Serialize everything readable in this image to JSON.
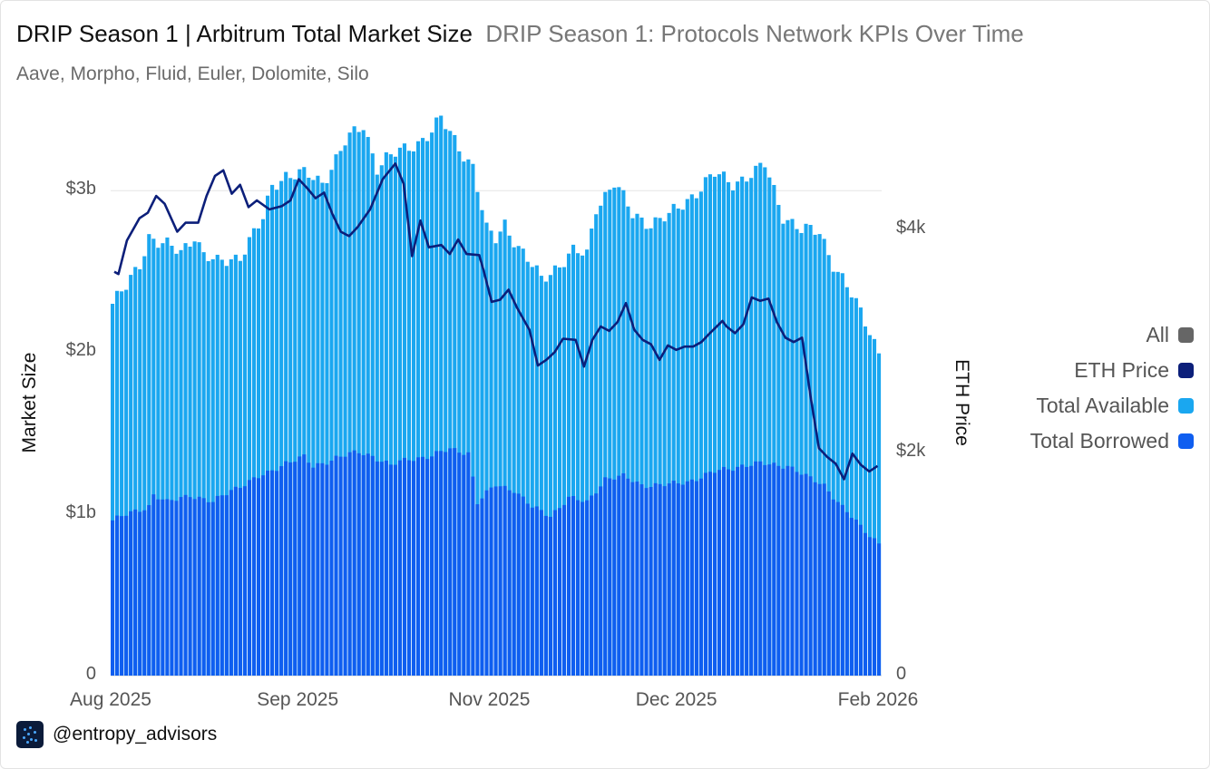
{
  "header": {
    "title": "DRIP Season 1 | Arbitrum Total Market Size",
    "subtitle": "DRIP Season 1: Protocols Network KPIs Over Time",
    "description": "Aave, Morpho, Fluid, Euler, Dolomite, Silo"
  },
  "footer": {
    "handle": "@entropy_advisors",
    "logo_icon": "entropy-logo-icon"
  },
  "legend": {
    "items": [
      {
        "label": "All",
        "color": "#666666"
      },
      {
        "label": "ETH Price",
        "color": "#0c1f7a"
      },
      {
        "label": "Total Available",
        "color": "#1aa7f0"
      },
      {
        "label": "Total Borrowed",
        "color": "#0f5ef0"
      }
    ]
  },
  "chart_data": {
    "type": "bar+line",
    "title": "DRIP Season 1 | Arbitrum Total Market Size",
    "ylabel": "Market Size",
    "y2label": "ETH Price",
    "ylim": [
      0,
      3.45
    ],
    "y2lim": [
      0,
      5000
    ],
    "y_ticks": [
      "0",
      "$1b",
      "$2b",
      "$3b"
    ],
    "y_tick_values": [
      0,
      1,
      2,
      3
    ],
    "y2_ticks": [
      "0",
      "$2k",
      "$4k"
    ],
    "y2_tick_values": [
      0,
      2000,
      4000
    ],
    "x_ticks": [
      "Aug 2025",
      "Sep 2025",
      "Nov 2025",
      "Dec 2025",
      "Feb 2026"
    ],
    "x_tick_index": [
      0,
      41,
      83,
      124,
      166
    ],
    "gridlines": [
      3
    ],
    "units": "billions USD (bars), USD (line)",
    "borrowed_anchors": [
      [
        0,
        0.96
      ],
      [
        8,
        1.05
      ],
      [
        9,
        1.12
      ],
      [
        12,
        1.07
      ],
      [
        17,
        1.12
      ],
      [
        22,
        1.07
      ],
      [
        26,
        1.15
      ],
      [
        34,
        1.25
      ],
      [
        38,
        1.32
      ],
      [
        42,
        1.35
      ],
      [
        44,
        1.29
      ],
      [
        49,
        1.35
      ],
      [
        54,
        1.38
      ],
      [
        57,
        1.36
      ],
      [
        61,
        1.3
      ],
      [
        65,
        1.34
      ],
      [
        70,
        1.36
      ],
      [
        74,
        1.4
      ],
      [
        78,
        1.38
      ],
      [
        80,
        1.07
      ],
      [
        84,
        1.18
      ],
      [
        88,
        1.15
      ],
      [
        92,
        1.04
      ],
      [
        96,
        0.99
      ],
      [
        100,
        1.1
      ],
      [
        104,
        1.07
      ],
      [
        108,
        1.22
      ],
      [
        112,
        1.23
      ],
      [
        116,
        1.18
      ],
      [
        122,
        1.18
      ],
      [
        126,
        1.2
      ],
      [
        132,
        1.26
      ],
      [
        138,
        1.3
      ],
      [
        142,
        1.31
      ],
      [
        148,
        1.3
      ],
      [
        152,
        1.23
      ],
      [
        156,
        1.18
      ],
      [
        160,
        1.04
      ],
      [
        164,
        0.92
      ],
      [
        168,
        0.82
      ]
    ],
    "total_anchors": [
      [
        0,
        2.3
      ],
      [
        3,
        2.4
      ],
      [
        6,
        2.55
      ],
      [
        8,
        2.72
      ],
      [
        10,
        2.68
      ],
      [
        15,
        2.62
      ],
      [
        18,
        2.73
      ],
      [
        20,
        2.6
      ],
      [
        23,
        2.55
      ],
      [
        28,
        2.6
      ],
      [
        33,
        2.82
      ],
      [
        35,
        3.03
      ],
      [
        38,
        3.1
      ],
      [
        42,
        3.1
      ],
      [
        46,
        3.05
      ],
      [
        51,
        3.3
      ],
      [
        55,
        3.4
      ],
      [
        58,
        3.15
      ],
      [
        60,
        3.2
      ],
      [
        64,
        3.25
      ],
      [
        67,
        3.3
      ],
      [
        70,
        3.37
      ],
      [
        72,
        3.44
      ],
      [
        76,
        3.27
      ],
      [
        79,
        3.15
      ],
      [
        82,
        2.75
      ],
      [
        84,
        2.7
      ],
      [
        86,
        2.8
      ],
      [
        89,
        2.65
      ],
      [
        94,
        2.45
      ],
      [
        99,
        2.57
      ],
      [
        101,
        2.62
      ],
      [
        104,
        2.6
      ],
      [
        106,
        2.9
      ],
      [
        110,
        3.05
      ],
      [
        114,
        2.85
      ],
      [
        118,
        2.8
      ],
      [
        122,
        2.84
      ],
      [
        127,
        2.97
      ],
      [
        132,
        3.1
      ],
      [
        136,
        3.05
      ],
      [
        141,
        3.11
      ],
      [
        143,
        3.16
      ],
      [
        147,
        2.85
      ],
      [
        151,
        2.75
      ],
      [
        155,
        2.75
      ],
      [
        158,
        2.55
      ],
      [
        162,
        2.35
      ],
      [
        166,
        2.14
      ],
      [
        168,
        2.0
      ]
    ],
    "eth_anchors": [
      [
        0,
        3620
      ],
      [
        1,
        3600
      ],
      [
        3,
        3900
      ],
      [
        6,
        4100
      ],
      [
        8,
        4150
      ],
      [
        10,
        4300
      ],
      [
        12,
        4230
      ],
      [
        15,
        3980
      ],
      [
        17,
        4060
      ],
      [
        20,
        4060
      ],
      [
        22,
        4300
      ],
      [
        24,
        4480
      ],
      [
        26,
        4530
      ],
      [
        28,
        4320
      ],
      [
        30,
        4400
      ],
      [
        32,
        4200
      ],
      [
        34,
        4260
      ],
      [
        37,
        4180
      ],
      [
        40,
        4210
      ],
      [
        42,
        4260
      ],
      [
        44,
        4450
      ],
      [
        46,
        4370
      ],
      [
        48,
        4280
      ],
      [
        50,
        4330
      ],
      [
        52,
        4140
      ],
      [
        54,
        3980
      ],
      [
        56,
        3940
      ],
      [
        58,
        4020
      ],
      [
        61,
        4180
      ],
      [
        64,
        4450
      ],
      [
        67,
        4590
      ],
      [
        69,
        4410
      ],
      [
        71,
        3760
      ],
      [
        73,
        4080
      ],
      [
        75,
        3840
      ],
      [
        78,
        3860
      ],
      [
        80,
        3780
      ],
      [
        82,
        3910
      ],
      [
        84,
        3780
      ],
      [
        87,
        3770
      ],
      [
        88,
        3640
      ],
      [
        90,
        3350
      ],
      [
        92,
        3370
      ],
      [
        94,
        3460
      ],
      [
        96,
        3300
      ],
      [
        99,
        3100
      ],
      [
        101,
        2780
      ],
      [
        103,
        2830
      ],
      [
        105,
        2900
      ],
      [
        107,
        3020
      ],
      [
        110,
        3010
      ],
      [
        112,
        2770
      ],
      [
        114,
        3010
      ],
      [
        116,
        3130
      ],
      [
        118,
        3090
      ],
      [
        120,
        3170
      ],
      [
        122,
        3340
      ],
      [
        124,
        3100
      ],
      [
        126,
        3010
      ],
      [
        128,
        2970
      ],
      [
        130,
        2830
      ],
      [
        132,
        2960
      ],
      [
        134,
        2920
      ],
      [
        136,
        2950
      ],
      [
        138,
        2950
      ],
      [
        140,
        2990
      ],
      [
        142,
        3070
      ],
      [
        145,
        3180
      ],
      [
        146,
        3130
      ],
      [
        148,
        3070
      ],
      [
        150,
        3150
      ],
      [
        152,
        3390
      ],
      [
        154,
        3360
      ],
      [
        156,
        3380
      ],
      [
        158,
        3170
      ],
      [
        160,
        3030
      ],
      [
        162,
        2990
      ],
      [
        164,
        3030
      ],
      [
        166,
        2510
      ],
      [
        168,
        2040
      ],
      [
        170,
        1960
      ],
      [
        172,
        1900
      ],
      [
        174,
        1760
      ],
      [
        176,
        1990
      ],
      [
        178,
        1890
      ],
      [
        180,
        1830
      ],
      [
        182,
        1880
      ]
    ]
  }
}
